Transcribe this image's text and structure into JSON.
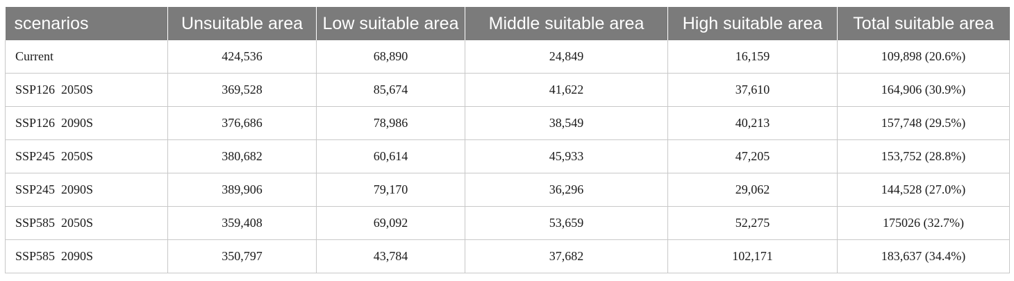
{
  "table": {
    "headers": [
      "scenarios",
      "Unsuitable area",
      "Low suitable area",
      "Middle suitable area",
      "High suitable area",
      "Total suitable area"
    ],
    "rows": [
      [
        "Current",
        "424,536",
        "68,890",
        "24,849",
        "16,159",
        "109,898 (20.6%)"
      ],
      [
        "SSP126  2050S",
        "369,528",
        "85,674",
        "41,622",
        "37,610",
        "164,906 (30.9%)"
      ],
      [
        "SSP126  2090S",
        "376,686",
        "78,986",
        "38,549",
        "40,213",
        "157,748 (29.5%)"
      ],
      [
        "SSP245  2050S",
        "380,682",
        "60,614",
        "45,933",
        "47,205",
        "153,752 (28.8%)"
      ],
      [
        "SSP245  2090S",
        "389,906",
        "79,170",
        "36,296",
        "29,062",
        "144,528 (27.0%)"
      ],
      [
        "SSP585  2050S",
        "359,408",
        "69,092",
        "53,659",
        "52,275",
        "175026 (32.7%)"
      ],
      [
        "SSP585  2090S",
        "350,797",
        "43,784",
        "37,682",
        "102,171",
        "183,637 (34.4%)"
      ]
    ]
  }
}
